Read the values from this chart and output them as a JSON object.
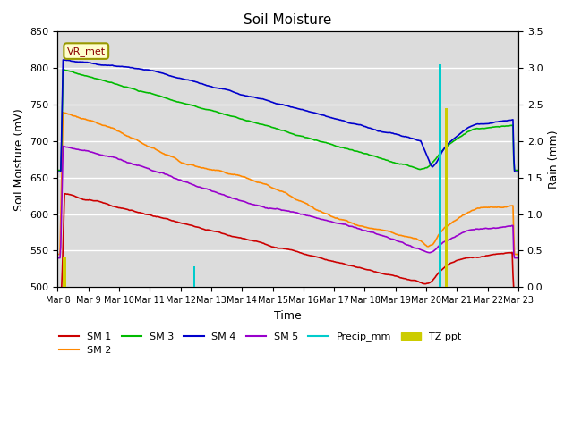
{
  "title": "Soil Moisture",
  "xlabel": "Time",
  "ylabel_left": "Soil Moisture (mV)",
  "ylabel_right": "Rain (mm)",
  "ylim_left": [
    500,
    850
  ],
  "ylim_right": [
    0.0,
    3.5
  ],
  "background_color": "#dcdcdc",
  "colors": {
    "SM1": "#cc0000",
    "SM2": "#ff8800",
    "SM3": "#00bb00",
    "SM4": "#0000cc",
    "SM5": "#9900cc",
    "Precip": "#00cccc",
    "TZ": "#cccc00"
  },
  "annotation_label": "VR_met"
}
